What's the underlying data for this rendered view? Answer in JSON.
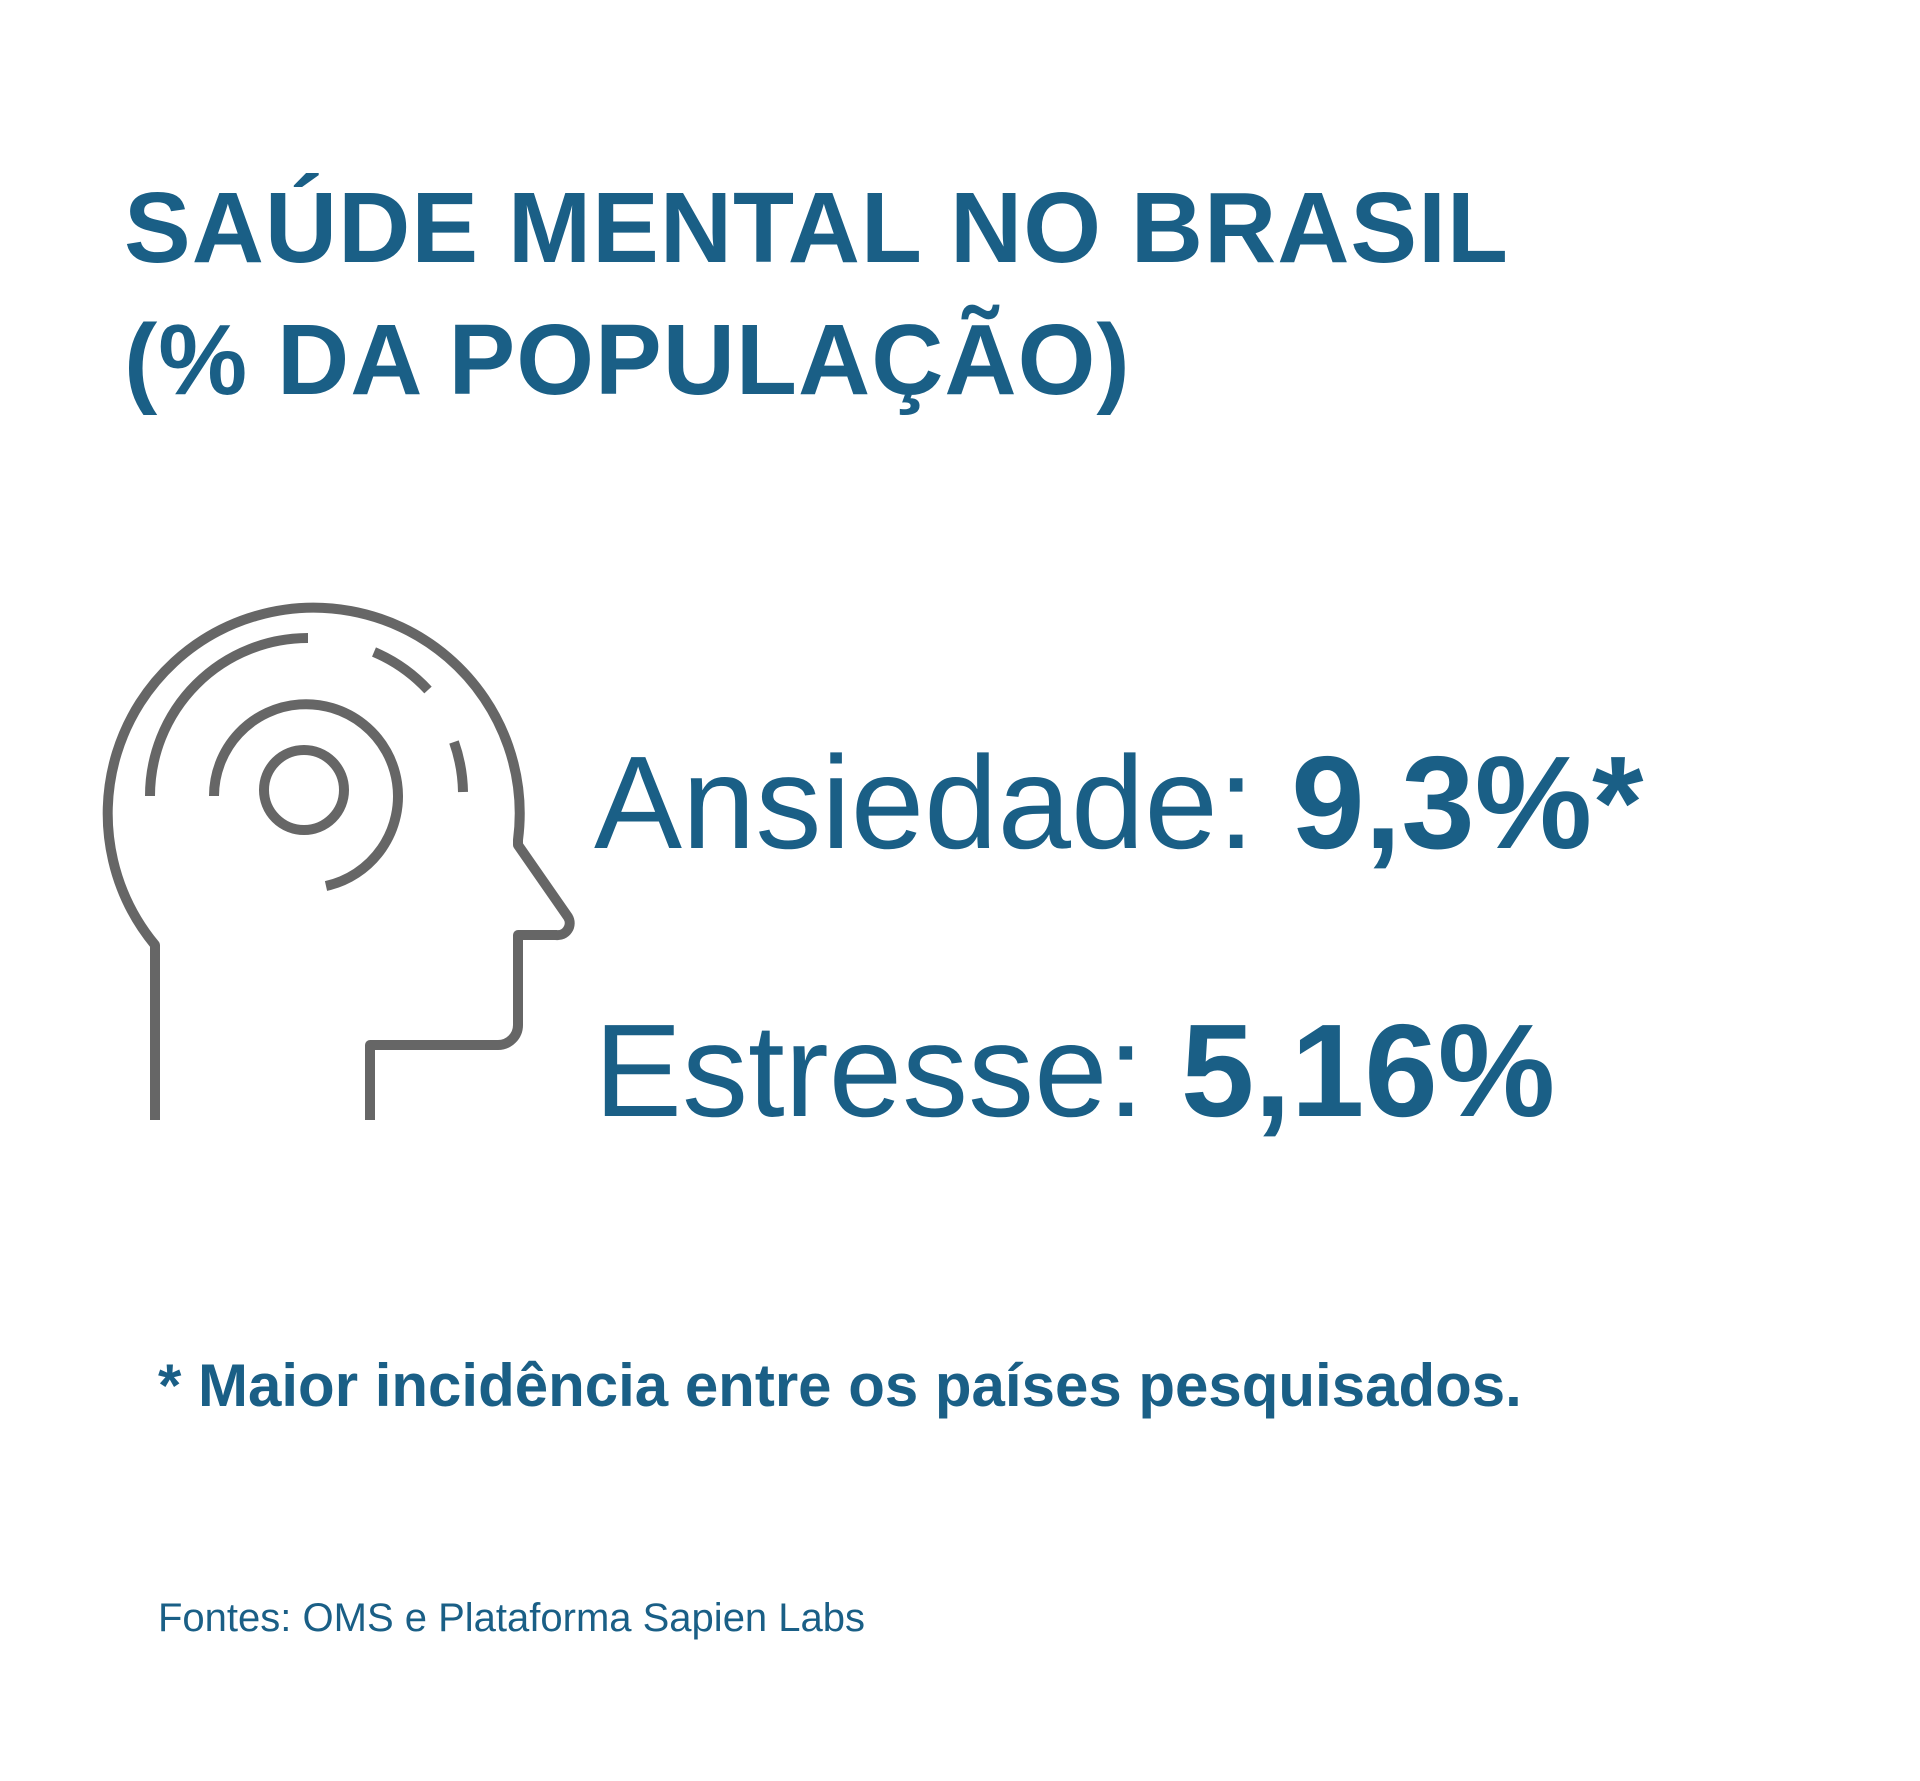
{
  "title": {
    "line1": "SAÚDE MENTAL NO BRASIL",
    "line2": "(% DA POPULAÇÃO)"
  },
  "icon": "head-with-brain-waves-icon",
  "stats": [
    {
      "label": "Ansiedade:",
      "value": "9,3%*"
    },
    {
      "label": "Estresse:",
      "value": "5,16%"
    }
  ],
  "footnote": "* Maior incidência entre os países pesquisados.",
  "sources": "Fontes: OMS e Plataforma Sapien Labs",
  "colors": {
    "accent": "#1a5f86",
    "icon_stroke": "#666666",
    "background": "#ffffff"
  }
}
